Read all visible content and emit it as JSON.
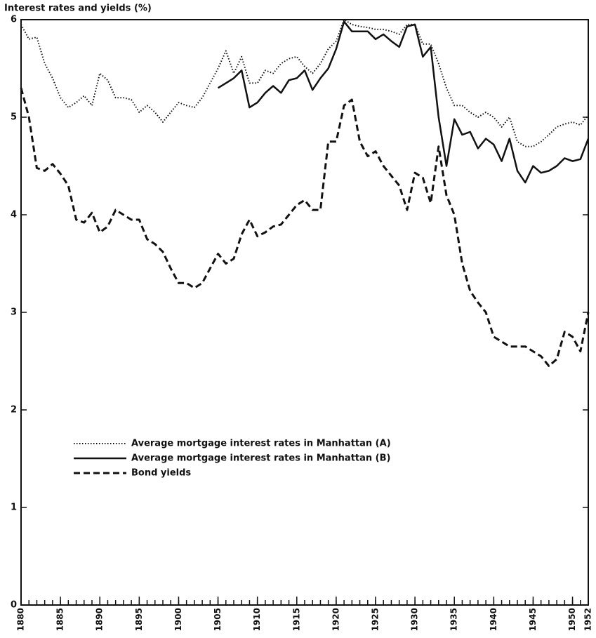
{
  "chart_data": {
    "type": "line",
    "title": "Interest rates and yields (%)",
    "x": [
      1880,
      1881,
      1882,
      1883,
      1884,
      1885,
      1886,
      1887,
      1888,
      1889,
      1890,
      1891,
      1892,
      1893,
      1894,
      1895,
      1896,
      1897,
      1898,
      1899,
      1900,
      1901,
      1902,
      1903,
      1904,
      1905,
      1906,
      1907,
      1908,
      1909,
      1910,
      1911,
      1912,
      1913,
      1914,
      1915,
      1916,
      1917,
      1918,
      1919,
      1920,
      1921,
      1922,
      1923,
      1924,
      1925,
      1926,
      1927,
      1928,
      1929,
      1930,
      1931,
      1932,
      1933,
      1934,
      1935,
      1936,
      1937,
      1938,
      1939,
      1940,
      1941,
      1942,
      1943,
      1944,
      1945,
      1946,
      1947,
      1948,
      1949,
      1950,
      1951,
      1952
    ],
    "series": [
      {
        "name": "Average mortgage interest rates in Manhattan (A)",
        "color": "#111111",
        "style": "dotted",
        "values": [
          5.95,
          5.8,
          5.82,
          5.55,
          5.4,
          5.2,
          5.1,
          5.15,
          5.22,
          5.12,
          5.45,
          5.38,
          5.2,
          5.2,
          5.18,
          5.05,
          5.12,
          5.05,
          4.95,
          5.05,
          5.15,
          5.12,
          5.1,
          5.2,
          5.35,
          5.5,
          5.68,
          5.45,
          5.62,
          5.35,
          5.35,
          5.48,
          5.45,
          5.55,
          5.6,
          5.62,
          5.52,
          5.45,
          5.55,
          5.7,
          5.78,
          6.0,
          5.95,
          5.93,
          5.92,
          5.9,
          5.9,
          5.88,
          5.85,
          5.95,
          5.95,
          5.75,
          5.75,
          5.55,
          5.3,
          5.12,
          5.12,
          5.05,
          5.0,
          5.05,
          5.0,
          4.9,
          5.0,
          4.75,
          4.7,
          4.7,
          4.75,
          4.82,
          4.9,
          4.93,
          4.95,
          4.92,
          5.02
        ]
      },
      {
        "name": "Average mortgage interest rates in Manhattan (B)",
        "color": "#111111",
        "style": "solid",
        "values": [
          null,
          null,
          null,
          null,
          null,
          null,
          null,
          null,
          null,
          null,
          null,
          null,
          null,
          null,
          null,
          null,
          null,
          null,
          null,
          null,
          null,
          null,
          null,
          null,
          null,
          5.3,
          5.35,
          5.4,
          5.48,
          5.1,
          5.15,
          5.25,
          5.32,
          5.25,
          5.38,
          5.4,
          5.48,
          5.28,
          5.4,
          5.5,
          5.7,
          5.98,
          5.88,
          5.88,
          5.88,
          5.8,
          5.85,
          5.78,
          5.72,
          5.93,
          5.95,
          5.62,
          5.72,
          5.0,
          4.5,
          4.98,
          4.82,
          4.85,
          4.68,
          4.78,
          4.72,
          4.55,
          4.78,
          4.45,
          4.33,
          4.5,
          4.43,
          4.45,
          4.5,
          4.58,
          4.55,
          4.57,
          4.78
        ]
      },
      {
        "name": "Bond yields",
        "color": "#111111",
        "style": "dashed",
        "values": [
          5.3,
          5.0,
          4.48,
          4.45,
          4.52,
          4.42,
          4.3,
          3.95,
          3.92,
          4.02,
          3.82,
          3.88,
          4.05,
          4.0,
          3.95,
          3.95,
          3.75,
          3.7,
          3.62,
          3.45,
          3.3,
          3.3,
          3.25,
          3.3,
          3.45,
          3.6,
          3.5,
          3.55,
          3.8,
          3.95,
          3.78,
          3.82,
          3.88,
          3.9,
          4.0,
          4.1,
          4.15,
          4.05,
          4.05,
          4.75,
          4.75,
          5.12,
          5.18,
          4.75,
          4.6,
          4.65,
          4.5,
          4.4,
          4.3,
          4.05,
          4.43,
          4.38,
          4.12,
          4.7,
          4.2,
          4.0,
          3.5,
          3.22,
          3.1,
          3.0,
          2.75,
          2.7,
          2.65,
          2.65,
          2.65,
          2.6,
          2.55,
          2.45,
          2.52,
          2.8,
          2.75,
          2.6,
          3.0
        ]
      }
    ],
    "xlim": [
      1880,
      1952
    ],
    "xticks": [
      1880,
      1885,
      1890,
      1895,
      1900,
      1905,
      1910,
      1915,
      1920,
      1925,
      1930,
      1935,
      1940,
      1945,
      1950,
      1952
    ],
    "ylim": [
      0,
      6
    ],
    "yticks": [
      0,
      1,
      2,
      3,
      4,
      5,
      6
    ],
    "grid": false,
    "legend": "lower left"
  }
}
